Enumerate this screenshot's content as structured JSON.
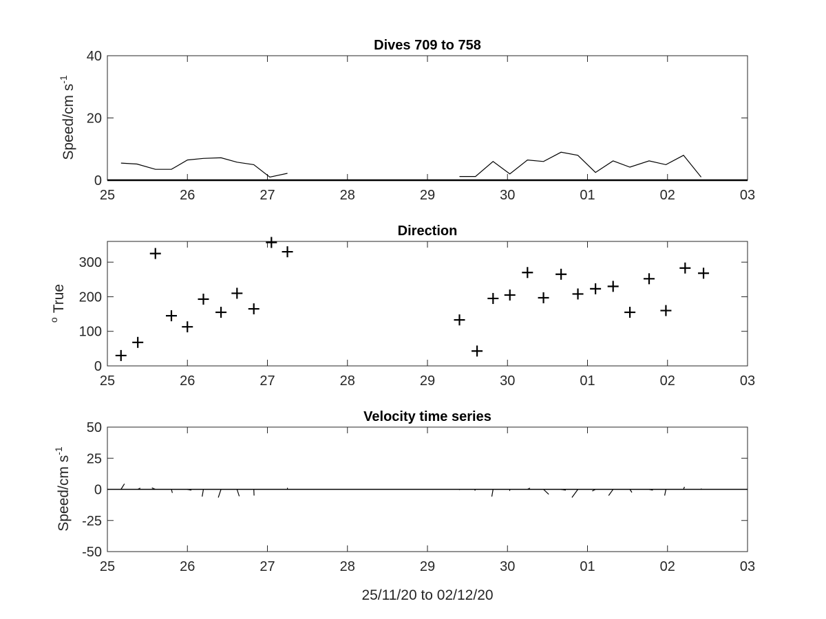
{
  "chart_data": [
    {
      "type": "line",
      "title": "Dives 709 to 758",
      "ylabel": "Speed/cm s",
      "ylabel_sup": "-1",
      "xlim": [
        0,
        8
      ],
      "ylim": [
        0,
        40
      ],
      "xticks": [
        "25",
        "26",
        "27",
        "28",
        "29",
        "30",
        "01",
        "02",
        "03"
      ],
      "yticks": [
        "0",
        "20",
        "40"
      ],
      "yticks_values": [
        0,
        20,
        40
      ],
      "segments": [
        {
          "x": [
            0.17,
            0.37,
            0.6,
            0.8,
            1.0,
            1.2,
            1.42,
            1.62,
            1.83,
            2.03,
            2.25
          ],
          "y": [
            5.5,
            5.2,
            3.5,
            3.5,
            6.5,
            7,
            7.2,
            5.8,
            5,
            1,
            2.2
          ]
        },
        {
          "x": [
            4.4,
            4.6,
            4.82,
            5.03,
            5.25,
            5.45,
            5.67,
            5.88,
            6.1,
            6.32,
            6.53,
            6.77,
            6.98,
            7.2,
            7.42
          ],
          "y": [
            1.2,
            1.2,
            6,
            2,
            6.5,
            6,
            9,
            8,
            2.5,
            6.2,
            4.2,
            6.2,
            5,
            8,
            1
          ]
        }
      ]
    },
    {
      "type": "scatter",
      "title": "Direction",
      "ylabel": "True",
      "ylabel_sup": "o",
      "xlim": [
        0,
        8
      ],
      "ylim": [
        0,
        360
      ],
      "xticks": [
        "25",
        "26",
        "27",
        "28",
        "29",
        "30",
        "01",
        "02",
        "03"
      ],
      "yticks": [
        "0",
        "100",
        "200",
        "300"
      ],
      "yticks_values": [
        0,
        100,
        200,
        300
      ],
      "x": [
        0.17,
        0.38,
        0.6,
        0.8,
        1.0,
        1.2,
        1.42,
        1.62,
        1.83,
        2.05,
        2.25,
        4.4,
        4.62,
        4.82,
        5.03,
        5.25,
        5.45,
        5.67,
        5.88,
        6.1,
        6.32,
        6.53,
        6.77,
        6.98,
        7.22,
        7.45
      ],
      "y": [
        30,
        68,
        325,
        145,
        113,
        193,
        155,
        210,
        165,
        357,
        330,
        133,
        43,
        195,
        205,
        270,
        197,
        265,
        208,
        223,
        230,
        155,
        252,
        160,
        283,
        268
      ]
    },
    {
      "type": "line",
      "title": "Velocity time series",
      "ylabel": "Speed/cm s",
      "ylabel_sup": "-1",
      "xlabel": "25/11/20 to 02/12/20",
      "xlim": [
        0,
        8
      ],
      "ylim": [
        -50,
        50
      ],
      "xticks": [
        "25",
        "26",
        "27",
        "28",
        "29",
        "30",
        "01",
        "02",
        "03"
      ],
      "yticks": [
        "-50",
        "-25",
        "0",
        "25",
        "50"
      ],
      "yticks_values": [
        -50,
        -25,
        0,
        25,
        50
      ],
      "x": [
        0.17,
        0.38,
        0.6,
        0.8,
        1.0,
        1.2,
        1.42,
        1.62,
        1.83,
        2.03,
        2.25,
        4.4,
        4.6,
        4.82,
        5.03,
        5.25,
        5.45,
        5.67,
        5.88,
        6.1,
        6.32,
        6.53,
        6.77,
        6.98,
        7.2,
        7.42
      ],
      "u": [
        2.8,
        2.0,
        -2.8,
        0.8,
        3.2,
        -1.0,
        -2.2,
        1.8,
        0.2,
        0.0,
        0.0,
        0.0,
        -0.6,
        -1.0,
        -0.2,
        2.0,
        4.2,
        3.8,
        -4.8,
        -2.6,
        -3.6,
        1.6,
        3.0,
        -1.0,
        0.8,
        0.3
      ],
      "v": [
        4.5,
        1.0,
        1.2,
        -2.8,
        -0.6,
        -5.8,
        -6.6,
        -5.5,
        -5.0,
        0.0,
        1.2,
        -0.5,
        -1.0,
        -5.8,
        -1.2,
        1.0,
        -4.0,
        -0.6,
        -6.6,
        -1.4,
        -5.0,
        -2.5,
        -0.6,
        -5.0,
        2.0,
        0.6
      ]
    }
  ]
}
